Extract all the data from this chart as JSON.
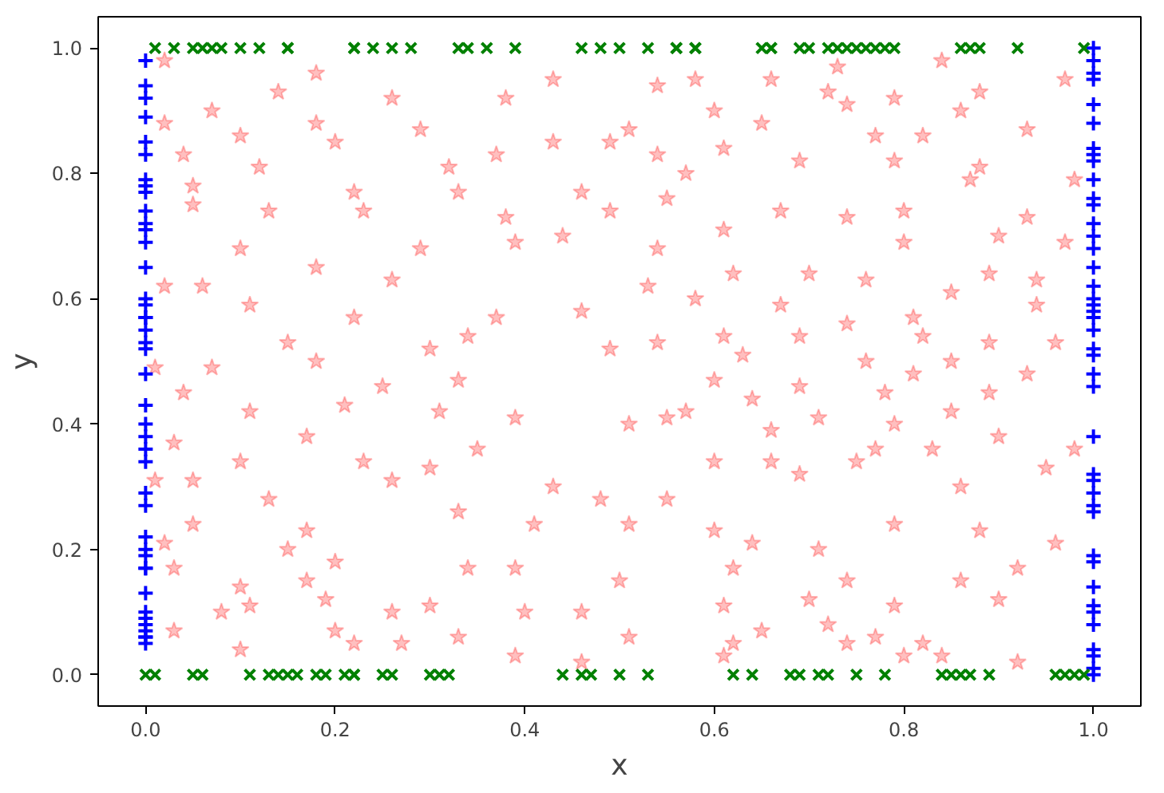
{
  "chart_data": {
    "type": "scatter",
    "xlabel": "x",
    "ylabel": "y",
    "xlim": [
      -0.05,
      1.05
    ],
    "ylim": [
      -0.05,
      1.05
    ],
    "xticks": [
      {
        "value": 0,
        "label": "0.0"
      },
      {
        "value": 0.2,
        "label": "0.2"
      },
      {
        "value": 0.4,
        "label": "0.4"
      },
      {
        "value": 0.6,
        "label": "0.6"
      },
      {
        "value": 0.8,
        "label": "0.8"
      },
      {
        "value": 1,
        "label": "1.0"
      }
    ],
    "yticks": [
      {
        "value": 0,
        "label": "0.0"
      },
      {
        "value": 0.2,
        "label": "0.2"
      },
      {
        "value": 0.4,
        "label": "0.4"
      },
      {
        "value": 0.6,
        "label": "0.6"
      },
      {
        "value": 0.8,
        "label": "0.8"
      },
      {
        "value": 1,
        "label": "1.0"
      }
    ],
    "grid": false,
    "series": [
      {
        "color": "#ff0000",
        "marker": "star",
        "x": [
          0.02,
          0.18,
          0.43,
          0.14,
          0.26,
          0.38,
          0.07,
          0.02,
          0.18,
          0.29,
          0.1,
          0.2,
          0.43,
          0.49,
          0.04,
          0.12,
          0.32,
          0.37,
          0.05,
          0.22,
          0.33,
          0.46,
          0.05,
          0.13,
          0.23,
          0.38,
          0.49,
          0.1,
          0.29,
          0.39,
          0.44,
          0.18,
          0.26,
          0.02,
          0.06,
          0.11,
          0.22,
          0.37,
          0.46,
          0.15,
          0.34,
          0.07,
          0.18,
          0.3,
          0.49,
          0.01,
          0.04,
          0.25,
          0.33,
          0.11,
          0.21,
          0.31,
          0.39,
          0.03,
          0.17,
          0.35,
          0.1,
          0.23,
          0.3,
          0.01,
          0.05,
          0.26,
          0.13,
          0.43,
          0.48,
          0.33,
          0.05,
          0.17,
          0.41,
          0.02,
          0.15,
          0.03,
          0.2,
          0.34,
          0.39,
          0.1,
          0.17,
          0.08,
          0.11,
          0.19,
          0.26,
          0.3,
          0.4,
          0.46,
          0.03,
          0.2,
          0.27,
          0.33,
          0.1,
          0.22,
          0.39,
          0.46,
          0.58,
          0.66,
          0.73,
          0.84,
          0.54,
          0.72,
          0.79,
          0.88,
          0.97,
          0.6,
          0.74,
          0.86,
          0.51,
          0.65,
          0.77,
          0.82,
          0.93,
          0.54,
          0.61,
          0.69,
          0.79,
          0.88,
          0.57,
          0.87,
          0.98,
          0.55,
          0.67,
          0.74,
          0.8,
          0.93,
          0.54,
          0.61,
          0.8,
          0.9,
          0.97,
          0.62,
          0.7,
          0.76,
          0.53,
          0.58,
          0.67,
          0.85,
          0.89,
          0.94,
          0.94,
          0.74,
          0.81,
          0.61,
          0.69,
          0.82,
          0.89,
          0.96,
          0.54,
          0.63,
          0.76,
          0.85,
          0.93,
          0.6,
          0.69,
          0.81,
          0.64,
          0.78,
          0.89,
          0.55,
          0.57,
          0.71,
          0.85,
          0.51,
          0.66,
          0.79,
          0.9,
          0.6,
          0.66,
          0.69,
          0.75,
          0.77,
          0.83,
          0.86,
          0.95,
          0.98,
          0.55,
          0.51,
          0.6,
          0.64,
          0.71,
          0.79,
          0.88,
          0.96,
          0.5,
          0.62,
          0.74,
          0.86,
          0.92,
          0.7,
          0.61,
          0.79,
          0.9,
          0.51,
          0.65,
          0.72,
          0.77,
          0.62,
          0.74,
          0.82,
          0.84,
          0.8,
          0.92,
          0.61
        ],
        "values": [
          0.98,
          0.96,
          0.95,
          0.93,
          0.92,
          0.92,
          0.9,
          0.88,
          0.88,
          0.87,
          0.86,
          0.85,
          0.85,
          0.85,
          0.83,
          0.81,
          0.81,
          0.83,
          0.78,
          0.77,
          0.77,
          0.77,
          0.75,
          0.74,
          0.74,
          0.73,
          0.74,
          0.68,
          0.68,
          0.69,
          0.7,
          0.65,
          0.63,
          0.62,
          0.62,
          0.59,
          0.57,
          0.57,
          0.58,
          0.53,
          0.54,
          0.49,
          0.5,
          0.52,
          0.52,
          0.49,
          0.45,
          0.46,
          0.47,
          0.42,
          0.43,
          0.42,
          0.41,
          0.37,
          0.38,
          0.36,
          0.34,
          0.34,
          0.33,
          0.31,
          0.31,
          0.31,
          0.28,
          0.3,
          0.28,
          0.26,
          0.24,
          0.23,
          0.24,
          0.21,
          0.2,
          0.17,
          0.18,
          0.17,
          0.17,
          0.14,
          0.15,
          0.1,
          0.11,
          0.12,
          0.1,
          0.11,
          0.1,
          0.1,
          0.07,
          0.07,
          0.05,
          0.06,
          0.04,
          0.05,
          0.03,
          0.02,
          0.95,
          0.95,
          0.97,
          0.98,
          0.94,
          0.93,
          0.92,
          0.93,
          0.95,
          0.9,
          0.91,
          0.9,
          0.87,
          0.88,
          0.86,
          0.86,
          0.87,
          0.83,
          0.84,
          0.82,
          0.82,
          0.81,
          0.8,
          0.79,
          0.79,
          0.76,
          0.74,
          0.73,
          0.74,
          0.73,
          0.68,
          0.71,
          0.69,
          0.7,
          0.69,
          0.64,
          0.64,
          0.63,
          0.62,
          0.6,
          0.59,
          0.61,
          0.64,
          0.63,
          0.59,
          0.56,
          0.57,
          0.54,
          0.54,
          0.54,
          0.53,
          0.53,
          0.53,
          0.51,
          0.5,
          0.5,
          0.48,
          0.47,
          0.46,
          0.48,
          0.44,
          0.45,
          0.45,
          0.41,
          0.42,
          0.41,
          0.42,
          0.4,
          0.39,
          0.4,
          0.38,
          0.34,
          0.34,
          0.32,
          0.34,
          0.36,
          0.36,
          0.3,
          0.33,
          0.36,
          0.28,
          0.24,
          0.23,
          0.21,
          0.2,
          0.24,
          0.23,
          0.21,
          0.15,
          0.17,
          0.15,
          0.15,
          0.17,
          0.12,
          0.11,
          0.11,
          0.12,
          0.06,
          0.07,
          0.08,
          0.06,
          0.05,
          0.05,
          0.05,
          0.03,
          0.03,
          0.02,
          0.03
        ]
      },
      {
        "color": "#0000ff",
        "marker": "cross",
        "x": [
          0,
          0,
          0,
          0,
          0,
          0,
          0,
          0,
          0,
          0,
          0,
          0,
          0,
          0,
          0,
          0,
          0,
          0,
          0,
          0,
          0,
          0,
          0,
          0,
          0,
          0,
          0,
          0,
          0,
          0,
          0,
          0,
          0,
          0,
          0,
          0,
          0,
          0,
          0,
          0,
          0,
          0,
          1,
          1,
          1,
          1,
          1,
          1,
          1,
          1,
          1,
          1,
          1,
          1,
          1,
          1,
          1,
          1,
          1,
          1,
          1,
          1,
          1,
          1,
          1,
          1,
          1,
          1,
          1,
          1,
          1,
          1,
          1,
          1,
          1,
          1,
          1,
          1,
          1,
          1,
          1,
          1,
          1,
          1
        ],
        "values": [
          0.98,
          0.94,
          0.92,
          0.89,
          0.85,
          0.83,
          0.79,
          0.78,
          0.77,
          0.74,
          0.72,
          0.71,
          0.69,
          0.65,
          0.6,
          0.59,
          0.57,
          0.57,
          0.55,
          0.53,
          0.52,
          0.48,
          0.43,
          0.4,
          0.38,
          0.36,
          0.34,
          0.29,
          0.27,
          0.22,
          0.2,
          0.19,
          0.17,
          0.17,
          0.13,
          0.1,
          0.09,
          0.08,
          0.07,
          0.06,
          0.06,
          0.05,
          1.0,
          0.98,
          0.96,
          0.95,
          0.91,
          0.88,
          0.84,
          0.83,
          0.82,
          0.79,
          0.76,
          0.75,
          0.72,
          0.7,
          0.68,
          0.65,
          0.62,
          0.6,
          0.59,
          0.58,
          0.57,
          0.55,
          0.52,
          0.51,
          0.48,
          0.46,
          0.38,
          0.32,
          0.31,
          0.29,
          0.27,
          0.26,
          0.19,
          0.18,
          0.14,
          0.11,
          0.1,
          0.08,
          0.04,
          0.03,
          0.01,
          0.0
        ]
      },
      {
        "color": "#008000",
        "marker": "x",
        "x": [
          0.01,
          0.03,
          0.05,
          0.06,
          0.07,
          0.08,
          0.1,
          0.12,
          0.15,
          0.15,
          0.22,
          0.22,
          0.24,
          0.26,
          0.28,
          0.33,
          0.34,
          0.36,
          0.39,
          0.46,
          0.48,
          0.5,
          0.53,
          0.56,
          0.56,
          0.58,
          0.58,
          0.65,
          0.66,
          0.66,
          0.69,
          0.7,
          0.72,
          0.73,
          0.74,
          0.75,
          0.76,
          0.77,
          0.78,
          0.79,
          0.86,
          0.87,
          0.88,
          0.92,
          0.99,
          0.0,
          0.01,
          0.05,
          0.06,
          0.11,
          0.13,
          0.14,
          0.15,
          0.16,
          0.18,
          0.19,
          0.21,
          0.22,
          0.22,
          0.25,
          0.26,
          0.3,
          0.31,
          0.32,
          0.44,
          0.46,
          0.47,
          0.5,
          0.53,
          0.62,
          0.64,
          0.68,
          0.69,
          0.71,
          0.72,
          0.75,
          0.78,
          0.84,
          0.85,
          0.86,
          0.87,
          0.89,
          0.96,
          0.97,
          0.98,
          0.99
        ],
        "values": [
          1,
          1,
          1,
          1,
          1,
          1,
          1,
          1,
          1,
          1,
          1,
          1,
          1,
          1,
          1,
          1,
          1,
          1,
          1,
          1,
          1,
          1,
          1,
          1,
          1,
          1,
          1,
          1,
          1,
          1,
          1,
          1,
          1,
          1,
          1,
          1,
          1,
          1,
          1,
          1,
          1,
          1,
          1,
          1,
          1,
          0,
          0,
          0,
          0,
          0,
          0,
          0,
          0,
          0,
          0,
          0,
          0,
          0,
          0,
          0,
          0,
          0,
          0,
          0,
          0,
          0,
          0,
          0,
          0,
          0,
          0,
          0,
          0,
          0,
          0,
          0,
          0,
          0,
          0,
          0,
          0,
          0,
          0,
          0,
          0,
          0
        ]
      }
    ]
  }
}
